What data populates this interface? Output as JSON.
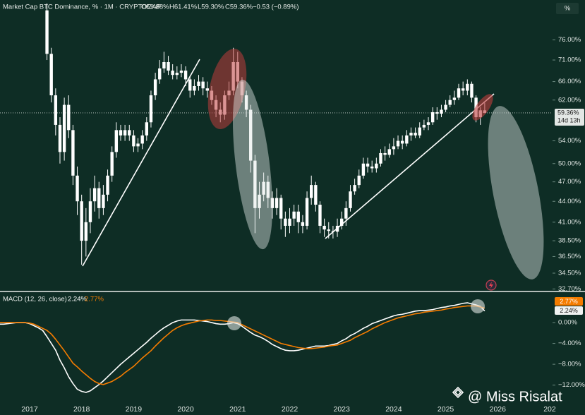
{
  "chart_data": [
    {
      "type": "candlestick",
      "title": "Market Cap BTC Dominance, % · 1M · CRYPTOCAP",
      "legend_values": [
        "O59.88%",
        "H61.41%",
        "L59.30%",
        "C59.36%",
        "−0.53 (−0.89%)"
      ],
      "categories": [
        null,
        null,
        null,
        null,
        null,
        null,
        null,
        "2017",
        null,
        null,
        null,
        null,
        null,
        null,
        null,
        null,
        null,
        null,
        null,
        "2018",
        null,
        null,
        null,
        null,
        null,
        null,
        null,
        null,
        null,
        null,
        null,
        "2019",
        null,
        null,
        null,
        null,
        null,
        null,
        null,
        null,
        null,
        null,
        null,
        "2020",
        null,
        null,
        null,
        null,
        null,
        null,
        null,
        null,
        null,
        null,
        null,
        "2021",
        null,
        null,
        null,
        null,
        null,
        null,
        null,
        null,
        null,
        null,
        null,
        "2022",
        null,
        null,
        null,
        null,
        null,
        null,
        null,
        null,
        null,
        null,
        null,
        "2023",
        null,
        null,
        null,
        null,
        null,
        null,
        null,
        null,
        null,
        null,
        null,
        "2024",
        null,
        null,
        null,
        null,
        null,
        null,
        null,
        null,
        null,
        null,
        null,
        "2025",
        null,
        null,
        null,
        null,
        null,
        null,
        null,
        null,
        null,
        null,
        null,
        "2026",
        null,
        null,
        null,
        null,
        null,
        null,
        null,
        null,
        null,
        null,
        null,
        "202"
      ],
      "open": [
        null,
        null,
        null,
        null,
        null,
        null,
        null,
        null,
        null,
        null,
        null,
        84,
        72.5,
        63,
        57,
        52,
        61,
        56,
        48,
        44,
        38.5,
        41,
        44,
        46,
        43,
        45,
        48,
        52,
        56,
        55,
        56,
        55,
        53,
        53.5,
        55,
        57.5,
        63,
        66.5,
        69,
        70.5,
        68.5,
        67.5,
        68,
        68.5,
        66.5,
        64,
        65,
        66,
        64.5,
        64,
        62,
        60,
        59,
        63,
        64,
        70.5,
        66,
        63,
        60,
        50.5,
        43,
        45,
        47,
        44.5,
        43,
        44.5,
        41.5,
        40.5,
        41.5,
        42.5,
        41,
        40.5,
        44.5,
        46.5,
        43.5,
        40.5,
        40,
        39.8,
        39.7,
        40.5,
        41.5,
        43,
        45.5,
        46.5,
        48,
        50,
        49.5,
        49.2,
        50,
        51.8,
        51.5,
        52.5,
        53,
        54,
        53.5,
        55,
        55.5,
        55,
        56.5,
        57,
        57.5,
        59.5,
        59.2,
        60,
        61,
        62,
        62.5,
        64.5,
        64,
        65.5,
        62.5,
        58.5,
        59.88,
        null,
        null,
        null,
        null,
        null,
        null,
        null,
        null,
        null,
        null,
        null,
        null,
        null,
        null,
        null
      ],
      "high": [
        null,
        null,
        null,
        null,
        null,
        null,
        null,
        null,
        null,
        null,
        null,
        86,
        74,
        64.5,
        58.5,
        62.5,
        63,
        57,
        49.5,
        45,
        43,
        46,
        48,
        47,
        46.5,
        49,
        53,
        57.5,
        57,
        57,
        57,
        56,
        54.5,
        56,
        58.5,
        64,
        68,
        71,
        73,
        72,
        70,
        69.5,
        70,
        69.5,
        67,
        66.5,
        67.5,
        67,
        66,
        65,
        63,
        61.5,
        64,
        66,
        74,
        73,
        67,
        64,
        61,
        51.5,
        47,
        48.5,
        48,
        45.5,
        46,
        45,
        42.5,
        43,
        43.5,
        43.5,
        42,
        45.5,
        48,
        47,
        44,
        41.5,
        41,
        40.5,
        41.5,
        42.5,
        44,
        46.5,
        47.5,
        49,
        51,
        51,
        50.5,
        51,
        52.5,
        53,
        53.5,
        54.5,
        55,
        55,
        56,
        56.5,
        56.5,
        57.5,
        58,
        58.5,
        60.5,
        60.5,
        61,
        62,
        63,
        64,
        65.5,
        66,
        66.5,
        66,
        63,
        60.5,
        61.41,
        null,
        null,
        null,
        null,
        null,
        null,
        null,
        null,
        null,
        null,
        null,
        null,
        null,
        null,
        null
      ],
      "low": [
        null,
        null,
        null,
        null,
        null,
        null,
        null,
        null,
        null,
        null,
        null,
        71,
        61.5,
        55,
        50,
        50.5,
        54.5,
        46.5,
        42,
        35.5,
        36.5,
        39.5,
        42.5,
        41.5,
        42,
        44,
        47,
        51,
        54,
        54,
        54,
        52,
        52,
        52.5,
        54,
        56.5,
        62,
        65.5,
        68,
        67.5,
        66.5,
        66.5,
        67,
        65,
        62.5,
        63,
        64,
        63,
        62.5,
        61,
        58.5,
        57.5,
        58,
        62,
        63,
        64.5,
        61.5,
        58.5,
        48.5,
        39.5,
        41.5,
        44,
        43,
        41.5,
        42,
        40,
        39,
        39.5,
        40.5,
        39.5,
        39.5,
        40,
        43.5,
        42.5,
        39.5,
        39,
        38.8,
        38.8,
        39,
        40,
        40.5,
        42.5,
        45,
        46,
        47.5,
        48.5,
        48.5,
        48.5,
        49.5,
        50.5,
        51,
        51.5,
        52.5,
        52.5,
        53,
        54,
        54.5,
        54.5,
        56,
        56,
        57,
        58,
        58.5,
        59.5,
        60.5,
        61,
        62,
        63,
        63,
        61.5,
        57.5,
        57,
        59.3,
        null,
        null,
        null,
        null,
        null,
        null,
        null,
        null,
        null,
        null,
        null,
        null,
        null,
        null,
        null
      ],
      "close": [
        null,
        null,
        null,
        null,
        null,
        null,
        null,
        null,
        null,
        null,
        null,
        72.5,
        63,
        57,
        52,
        61,
        56,
        48,
        44,
        38.5,
        41,
        44,
        46,
        43,
        45,
        48,
        52,
        56,
        55,
        56,
        55,
        53,
        53.5,
        55,
        57.5,
        63,
        66.5,
        69,
        70.5,
        68.5,
        67.5,
        68,
        68.5,
        66.5,
        64,
        65,
        66,
        64.5,
        64,
        62,
        60,
        59,
        63,
        64,
        70.5,
        66,
        63,
        60,
        50.5,
        43,
        45,
        47,
        44.5,
        43,
        44.5,
        41.5,
        40.5,
        41.5,
        42.5,
        41,
        40.5,
        44.5,
        46.5,
        43.5,
        40.5,
        40,
        39.8,
        39.7,
        40.5,
        41.5,
        43,
        45.5,
        46.5,
        48,
        50,
        49.5,
        49.2,
        50,
        51.8,
        51.5,
        52.5,
        53,
        54,
        53.5,
        55,
        55.5,
        55,
        56.5,
        57,
        57.5,
        59.5,
        59.2,
        60,
        61,
        62,
        62.5,
        64.5,
        64,
        65.5,
        62.5,
        58.5,
        59.88,
        59.36,
        null,
        null,
        null,
        null,
        null,
        null,
        null,
        null,
        null,
        null,
        null,
        null,
        null,
        null,
        null
      ],
      "color": "#ffffff",
      "ylim": [
        32.5,
        87
      ],
      "log_scale": true,
      "yticks": [
        {
          "value": 32.7,
          "label": "32.70%"
        },
        {
          "value": 34.5,
          "label": "34.50%"
        },
        {
          "value": 36.5,
          "label": "36.50%"
        },
        {
          "value": 38.5,
          "label": "38.50%"
        },
        {
          "value": 41,
          "label": "41.00%"
        },
        {
          "value": 44,
          "label": "44.00%"
        },
        {
          "value": 47,
          "label": "47.00%"
        },
        {
          "value": 50,
          "label": "50.00%"
        },
        {
          "value": 54,
          "label": "54.00%"
        },
        {
          "value": 62,
          "label": "62.00%"
        },
        {
          "value": 66,
          "label": "66.00%"
        },
        {
          "value": 71,
          "label": "71.00%"
        },
        {
          "value": 76,
          "label": "76.00%"
        }
      ],
      "last_value": {
        "value": 59.36,
        "label": "59.36%"
      },
      "countdown": "14d 13h",
      "scale_button": "%",
      "watermark": "@ Miss Risalat"
    },
    {
      "type": "line",
      "title": "MACD (12, 26, close)",
      "legend_values": [
        "2.24%",
        "2.77%"
      ],
      "series": [
        {
          "color": "#ffffff",
          "values": [
            -0.3,
            -0.3,
            -0.2,
            -0.1,
            0,
            0,
            0,
            -0.2,
            -0.6,
            -1.0,
            -1.5,
            -2.7,
            -4.0,
            -5.3,
            -7.2,
            -8.7,
            -10.4,
            -11.7,
            -12.8,
            -13.2,
            -13.4,
            -13.1,
            -12.5,
            -11.9,
            -11.2,
            -10.4,
            -9.6,
            -8.8,
            -8.0,
            -7.3,
            -6.6,
            -5.9,
            -5.2,
            -4.5,
            -3.8,
            -3.0,
            -2.3,
            -1.6,
            -1.0,
            -0.5,
            0,
            0.3,
            0.5,
            0.5,
            0.5,
            0.5,
            0.4,
            0.3,
            0.2,
            0,
            -0.2,
            -0.3,
            -0.3,
            -0.2,
            0,
            -0.2,
            -0.7,
            -1.3,
            -1.9,
            -2.4,
            -2.7,
            -3.1,
            -3.6,
            -4.2,
            -4.6,
            -5.0,
            -5.3,
            -5.4,
            -5.4,
            -5.3,
            -5.1,
            -4.9,
            -4.7,
            -4.5,
            -4.5,
            -4.5,
            -4.4,
            -4.2,
            -4.0,
            -3.5,
            -3.1,
            -2.5,
            -2.1,
            -1.6,
            -1.1,
            -0.7,
            -0.2,
            0.1,
            0.4,
            0.7,
            1.0,
            1.3,
            1.5,
            1.6,
            1.8,
            2.0,
            2.2,
            2.3,
            2.3,
            2.4,
            2.5,
            2.7,
            2.9,
            3.0,
            3.2,
            3.3,
            3.5,
            3.7,
            3.8,
            3.6,
            3.4,
            3.1,
            2.24,
            null,
            null,
            null,
            null,
            null,
            null,
            null,
            null,
            null,
            null,
            null,
            null,
            null,
            null,
            null
          ]
        },
        {
          "color": "#f57c00",
          "values": [
            0,
            0,
            0,
            0,
            0,
            0,
            0,
            -0.1,
            -0.3,
            -0.7,
            -1.1,
            -1.5,
            -2.2,
            -3.2,
            -4.3,
            -5.4,
            -6.6,
            -7.8,
            -8.5,
            -9.3,
            -10.0,
            -10.7,
            -11.3,
            -11.7,
            -11.9,
            -11.6,
            -11.3,
            -10.8,
            -10.3,
            -9.6,
            -9.0,
            -8.4,
            -7.6,
            -6.8,
            -6.1,
            -5.4,
            -4.5,
            -3.7,
            -2.9,
            -2.2,
            -1.5,
            -1.0,
            -0.6,
            -0.3,
            -0.1,
            0.1,
            0.3,
            0.4,
            0.5,
            0.5,
            0.4,
            0.4,
            0.3,
            0.2,
            0.1,
            0,
            -0.4,
            -0.8,
            -1.2,
            -1.6,
            -2.0,
            -2.4,
            -2.8,
            -3.2,
            -3.6,
            -4.0,
            -4.2,
            -4.4,
            -4.6,
            -4.8,
            -4.9,
            -5.0,
            -5.0,
            -4.9,
            -4.8,
            -4.7,
            -4.5,
            -4.4,
            -4.3,
            -4.0,
            -3.7,
            -3.4,
            -2.9,
            -2.5,
            -2.1,
            -1.7,
            -1.2,
            -0.8,
            -0.4,
            0,
            0.3,
            0.6,
            0.9,
            1.1,
            1.3,
            1.5,
            1.7,
            1.8,
            2.0,
            2.1,
            2.2,
            2.3,
            2.4,
            2.6,
            2.7,
            2.9,
            3.0,
            3.1,
            3.2,
            3.2,
            3.2,
            3.0,
            2.77,
            null,
            null,
            null,
            null,
            null,
            null,
            null,
            null,
            null,
            null,
            null,
            null,
            null,
            null,
            null
          ]
        }
      ],
      "ylim": [
        -15.3,
        5.7
      ],
      "yticks": [
        {
          "value": 0,
          "label": "0.00%"
        },
        {
          "value": -4,
          "label": "−4.00%"
        },
        {
          "value": -8,
          "label": "−8.00%"
        },
        {
          "value": -12,
          "label": "−12.00%"
        }
      ]
    }
  ]
}
